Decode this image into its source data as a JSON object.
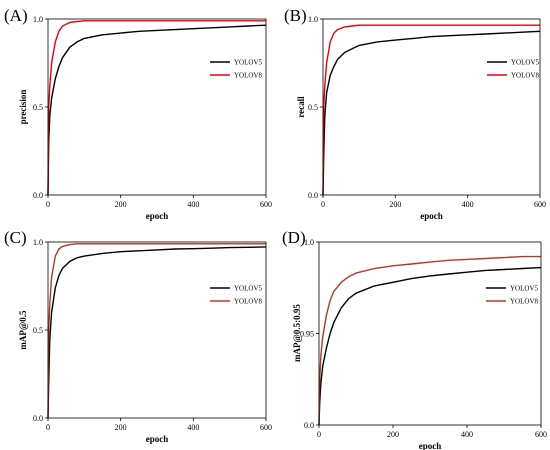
{
  "chart_data": [
    {
      "panel": "(A)",
      "type": "line",
      "xlabel": "epoch",
      "ylabel": "precision",
      "xlim": [
        0,
        600
      ],
      "ylim": [
        0,
        1.0
      ],
      "xticks": [
        "0",
        "200",
        "400",
        "600"
      ],
      "yticks": [
        "0.0",
        "0.5",
        "1.0"
      ],
      "legend_position": "right-middle",
      "grid": false,
      "series": [
        {
          "name": "YOLOV5",
          "color": "#000000",
          "x": [
            0,
            2,
            5,
            10,
            20,
            30,
            40,
            60,
            80,
            100,
            150,
            200,
            250,
            300,
            350,
            400,
            450,
            500,
            550,
            600
          ],
          "y": [
            0.0,
            0.3,
            0.45,
            0.55,
            0.66,
            0.73,
            0.78,
            0.84,
            0.87,
            0.89,
            0.91,
            0.92,
            0.93,
            0.935,
            0.94,
            0.945,
            0.95,
            0.955,
            0.96,
            0.965
          ]
        },
        {
          "name": "YOLOV8",
          "color": "#e8000b",
          "x": [
            0,
            2,
            5,
            10,
            20,
            30,
            40,
            60,
            80,
            100,
            150,
            200,
            300,
            400,
            500,
            600
          ],
          "y": [
            0.0,
            0.5,
            0.62,
            0.75,
            0.87,
            0.93,
            0.96,
            0.98,
            0.985,
            0.99,
            0.99,
            0.99,
            0.99,
            0.99,
            0.99,
            0.99
          ]
        }
      ]
    },
    {
      "panel": "(B)",
      "type": "line",
      "xlabel": "epoch",
      "ylabel": "recall",
      "xlim": [
        0,
        600
      ],
      "ylim": [
        0,
        1.0
      ],
      "xticks": [
        "0",
        "200",
        "400",
        "600"
      ],
      "yticks": [
        "0.0",
        "0.5",
        "1.0"
      ],
      "legend_position": "right-middle",
      "grid": false,
      "series": [
        {
          "name": "YOLOV5",
          "color": "#000000",
          "x": [
            0,
            2,
            5,
            10,
            20,
            30,
            40,
            60,
            80,
            100,
            150,
            200,
            250,
            300,
            350,
            400,
            450,
            500,
            550,
            600
          ],
          "y": [
            0.0,
            0.22,
            0.45,
            0.58,
            0.68,
            0.73,
            0.77,
            0.81,
            0.83,
            0.85,
            0.87,
            0.88,
            0.89,
            0.9,
            0.905,
            0.91,
            0.915,
            0.92,
            0.925,
            0.93
          ]
        },
        {
          "name": "YOLOV8",
          "color": "#e8000b",
          "x": [
            0,
            2,
            5,
            10,
            20,
            30,
            40,
            60,
            80,
            100,
            150,
            200,
            300,
            400,
            500,
            600
          ],
          "y": [
            0.0,
            0.5,
            0.62,
            0.75,
            0.87,
            0.92,
            0.94,
            0.955,
            0.96,
            0.965,
            0.965,
            0.965,
            0.965,
            0.965,
            0.965,
            0.965
          ]
        }
      ]
    },
    {
      "panel": "(C)",
      "type": "line",
      "xlabel": "epoch",
      "ylabel": "mAP@0.5",
      "xlim": [
        0,
        600
      ],
      "ylim": [
        0,
        1.0
      ],
      "xticks": [
        "0",
        "200",
        "400",
        "600"
      ],
      "yticks": [
        "0.0",
        "0.5",
        "1.0"
      ],
      "legend_position": "right-middle",
      "grid": false,
      "series": [
        {
          "name": "YOLOV5",
          "color": "#000000",
          "x": [
            0,
            2,
            5,
            10,
            20,
            30,
            40,
            60,
            80,
            100,
            150,
            200,
            250,
            300,
            350,
            400,
            450,
            500,
            550,
            600
          ],
          "y": [
            0.0,
            0.2,
            0.45,
            0.6,
            0.74,
            0.81,
            0.85,
            0.89,
            0.91,
            0.92,
            0.935,
            0.945,
            0.95,
            0.955,
            0.96,
            0.962,
            0.965,
            0.968,
            0.97,
            0.972
          ]
        },
        {
          "name": "YOLOV8",
          "color": "#b5381f",
          "x": [
            0,
            2,
            5,
            10,
            20,
            30,
            40,
            60,
            80,
            100,
            150,
            200,
            300,
            400,
            500,
            600
          ],
          "y": [
            0.0,
            0.5,
            0.65,
            0.8,
            0.92,
            0.96,
            0.975,
            0.985,
            0.99,
            0.99,
            0.99,
            0.99,
            0.99,
            0.99,
            0.99,
            0.99
          ]
        }
      ]
    },
    {
      "panel": "(D)",
      "type": "line",
      "xlabel": "epoch",
      "ylabel": "mAP@0.5:0.95",
      "xlim": [
        0,
        600
      ],
      "ylim": [
        0,
        1.0
      ],
      "xticks": [
        "0",
        "200",
        "400",
        "600"
      ],
      "yticks": [
        "0.0",
        "0.95",
        "1.0"
      ],
      "legend_position": "right-middle",
      "grid": false,
      "series": [
        {
          "name": "YOLOV5",
          "color": "#000000",
          "x": [
            0,
            2,
            5,
            10,
            20,
            30,
            40,
            60,
            80,
            100,
            150,
            200,
            250,
            300,
            350,
            400,
            450,
            500,
            550,
            600
          ],
          "y": [
            0.0,
            0.12,
            0.23,
            0.32,
            0.42,
            0.5,
            0.56,
            0.64,
            0.69,
            0.72,
            0.76,
            0.78,
            0.8,
            0.815,
            0.825,
            0.835,
            0.845,
            0.85,
            0.855,
            0.86
          ]
        },
        {
          "name": "YOLOV8",
          "color": "#b5381f",
          "x": [
            0,
            2,
            5,
            10,
            20,
            30,
            40,
            60,
            80,
            100,
            150,
            200,
            250,
            300,
            350,
            400,
            450,
            500,
            550,
            600
          ],
          "y": [
            0.0,
            0.25,
            0.38,
            0.48,
            0.6,
            0.68,
            0.73,
            0.78,
            0.81,
            0.83,
            0.855,
            0.87,
            0.88,
            0.89,
            0.9,
            0.905,
            0.91,
            0.915,
            0.92,
            0.92
          ]
        }
      ]
    }
  ]
}
